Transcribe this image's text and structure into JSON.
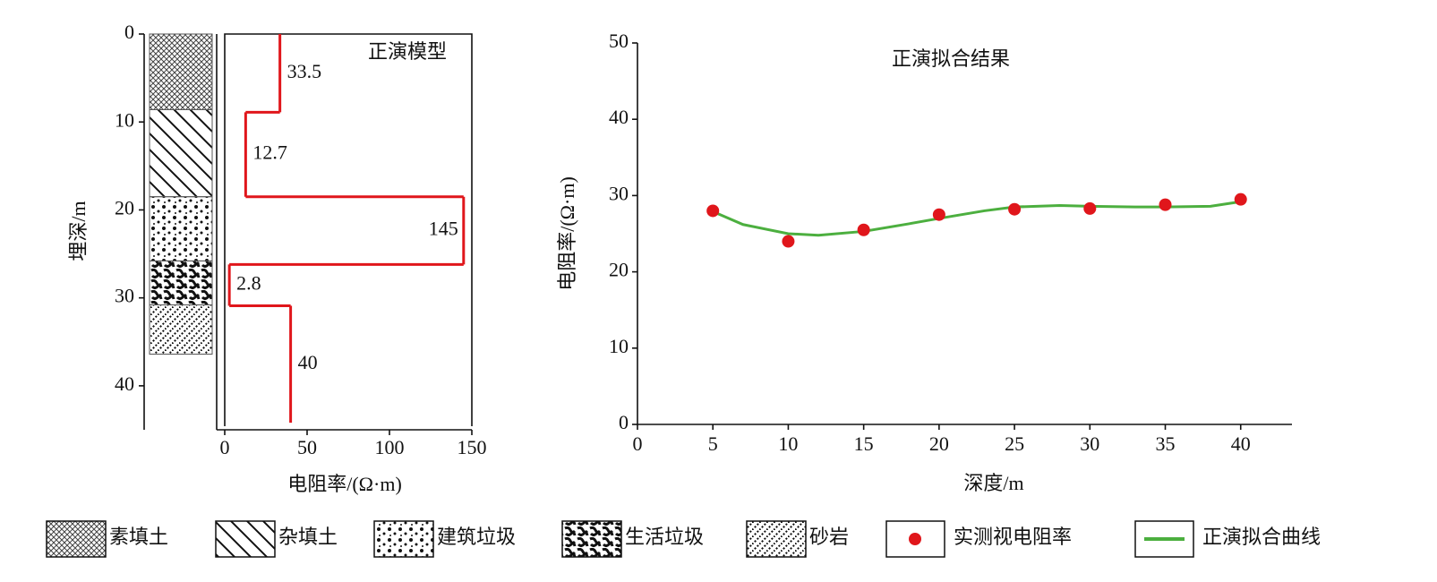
{
  "chart_data": [
    {
      "type": "depth-model",
      "title": "正演模型",
      "ylabel": "埋深/m",
      "xlabel": "电阻率/(Ω·m)",
      "ylim": [
        0,
        45
      ],
      "yticks": [
        0,
        10,
        20,
        30,
        40
      ],
      "xlim": [
        0,
        150
      ],
      "xticks": [
        0,
        50,
        100,
        150
      ],
      "layers": [
        {
          "name": "素填土",
          "top": 0,
          "bottom": 8.6
        },
        {
          "name": "杂填土",
          "top": 8.6,
          "bottom": 18.5
        },
        {
          "name": "建筑垃圾",
          "top": 18.5,
          "bottom": 25.8
        },
        {
          "name": "生活垃圾",
          "top": 25.8,
          "bottom": 30.8
        },
        {
          "name": "砂岩",
          "top": 30.8,
          "bottom": 36.4
        }
      ],
      "model": {
        "top": [
          0,
          8.9,
          18.5,
          26.2,
          30.9
        ],
        "bottom": [
          8.9,
          18.5,
          26.2,
          30.9,
          44.2
        ],
        "values": [
          33.5,
          12.7,
          145,
          2.8,
          40
        ]
      },
      "color": "#e0161b"
    },
    {
      "type": "line",
      "title": "正演拟合结果",
      "xlabel": "深度/m",
      "ylabel": "电阻率/(Ω·m)",
      "xlim": [
        0,
        43.4
      ],
      "xticks": [
        0,
        5,
        10,
        15,
        20,
        25,
        30,
        35,
        40
      ],
      "ylim": [
        0,
        50
      ],
      "yticks": [
        0,
        10,
        20,
        30,
        40,
        50
      ],
      "series": [
        {
          "name": "实测视电阻率",
          "marker": "point",
          "color": "#e0161b",
          "x": [
            5,
            10,
            15,
            20,
            25,
            30,
            35,
            40
          ],
          "values": [
            28,
            24,
            25.5,
            27.5,
            28.2,
            28.3,
            28.8,
            29.5
          ]
        },
        {
          "name": "正演拟合曲线",
          "marker": "line",
          "color": "#4caf3f",
          "x": [
            5,
            7,
            10,
            12,
            15,
            18,
            20,
            23,
            25,
            28,
            30,
            33,
            35,
            38,
            40
          ],
          "values": [
            27.9,
            26.2,
            25,
            24.8,
            25.3,
            26.3,
            27,
            28,
            28.5,
            28.7,
            28.6,
            28.5,
            28.5,
            28.6,
            29.2
          ]
        }
      ]
    }
  ]
}
